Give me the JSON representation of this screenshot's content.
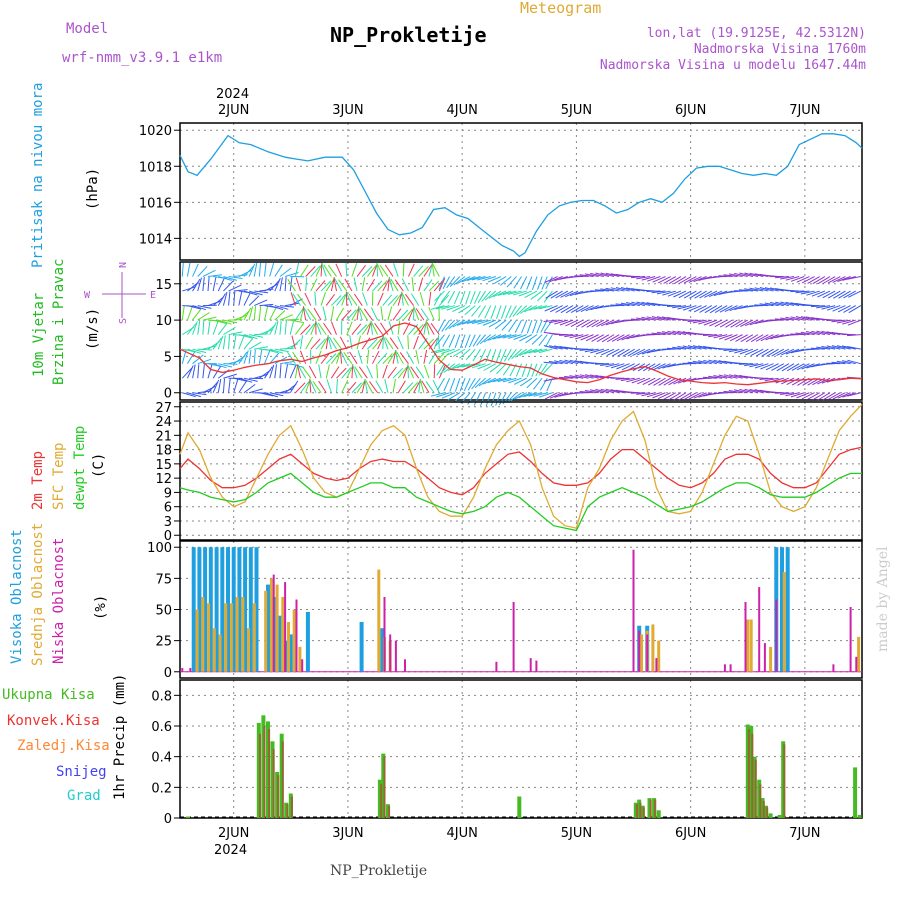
{
  "header": {
    "model_label": "Model",
    "model_name": "wrf-nmm_v3.9.1  e1km",
    "chart_kind": "Meteogram",
    "title": "NP_Prokletije",
    "coords": "lon,lat (19.9125E, 42.5312N)",
    "elevation": "Nadmorska Visina 1760m",
    "model_elevation": "Nadmorska Visina u modelu 1647.44m",
    "footer": "NP_Prokletije",
    "credit": "made by Angel"
  },
  "colors": {
    "pressure": "#1e9fe0",
    "wind_label": "#22bb22",
    "temp_2m": "#ee3333",
    "temp_sfc": "#e0aa33",
    "dewpt": "#22cc22",
    "high_cloud": "#1e9fe0",
    "mid_cloud": "#e0aa33",
    "low_cloud": "#cc22aa",
    "precip_total": "#44bb22",
    "precip_conv": "#ee3333",
    "precip_frz": "#ff8833",
    "snow": "#4444ee",
    "hail": "#22cccc",
    "title_purple": "#aa55cc"
  },
  "chart_data": [
    {
      "type": "line",
      "panel": "pressure",
      "ylabel_name": "Pritisak na nivou mora",
      "ylabel_unit": "(hPa)",
      "yticks": [
        "1014",
        "1016",
        "1018",
        "1020"
      ],
      "ylim": [
        1012.8,
        1020.4
      ],
      "x_top_year": "2024",
      "x_ticks": [
        "2JUN",
        "3JUN",
        "4JUN",
        "5JUN",
        "6JUN",
        "7JUN"
      ],
      "x_bottom_year": "2024",
      "xlim": [
        1.53,
        7.5
      ],
      "x": [
        1.53,
        1.6,
        1.68,
        1.8,
        1.95,
        2.05,
        2.15,
        2.3,
        2.45,
        2.55,
        2.65,
        2.8,
        2.95,
        3.05,
        3.15,
        3.25,
        3.35,
        3.45,
        3.55,
        3.65,
        3.75,
        3.85,
        3.95,
        4.05,
        4.15,
        4.25,
        4.35,
        4.45,
        4.5,
        4.55,
        4.6,
        4.65,
        4.75,
        4.85,
        4.95,
        5.05,
        5.15,
        5.25,
        5.35,
        5.45,
        5.55,
        5.65,
        5.75,
        5.85,
        5.95,
        6.05,
        6.15,
        6.25,
        6.35,
        6.45,
        6.55,
        6.65,
        6.75,
        6.85,
        6.95,
        7.05,
        7.15,
        7.25,
        7.35,
        7.45,
        7.5
      ],
      "y": [
        1018.6,
        1017.7,
        1017.5,
        1018.4,
        1019.7,
        1019.3,
        1019.2,
        1018.8,
        1018.5,
        1018.4,
        1018.3,
        1018.5,
        1018.5,
        1017.8,
        1016.6,
        1015.4,
        1014.5,
        1014.2,
        1014.3,
        1014.6,
        1015.6,
        1015.7,
        1015.3,
        1015.1,
        1014.6,
        1014.1,
        1013.6,
        1013.3,
        1013.0,
        1013.2,
        1013.8,
        1014.4,
        1015.3,
        1015.8,
        1016.0,
        1016.1,
        1016.1,
        1015.8,
        1015.4,
        1015.6,
        1016.0,
        1016.2,
        1016.0,
        1016.5,
        1017.3,
        1017.9,
        1018.0,
        1018.0,
        1017.8,
        1017.6,
        1017.5,
        1017.6,
        1017.5,
        1018.0,
        1019.2,
        1019.5,
        1019.8,
        1019.8,
        1019.7,
        1019.3,
        1019.0
      ]
    },
    {
      "type": "line",
      "panel": "wind",
      "ylabel_name": "10m Vjetar",
      "ylabel_name2": "Brzina i Pravac",
      "ylabel_unit": "(m/s)",
      "compass": {
        "n": "N",
        "s": "S",
        "e": "E",
        "w": "W"
      },
      "yticks": [
        "0",
        "5",
        "10",
        "15"
      ],
      "ylim": [
        -1,
        18
      ],
      "x": [
        1.53,
        1.6,
        1.7,
        1.8,
        1.9,
        2.0,
        2.1,
        2.2,
        2.3,
        2.4,
        2.5,
        2.6,
        2.7,
        2.8,
        2.9,
        3.0,
        3.1,
        3.2,
        3.3,
        3.4,
        3.5,
        3.6,
        3.7,
        3.8,
        3.9,
        4.0,
        4.1,
        4.2,
        4.3,
        4.4,
        4.5,
        4.6,
        4.7,
        4.8,
        4.9,
        5.0,
        5.1,
        5.2,
        5.3,
        5.4,
        5.5,
        5.6,
        5.7,
        5.8,
        5.9,
        6.0,
        6.1,
        6.2,
        6.3,
        6.4,
        6.5,
        6.6,
        6.7,
        6.8,
        6.9,
        7.0,
        7.1,
        7.2,
        7.3,
        7.4,
        7.5
      ],
      "y": [
        6,
        5.5,
        4.8,
        3.2,
        2.8,
        3.1,
        3.5,
        3.8,
        4,
        4.4,
        4.6,
        4.3,
        4.8,
        5.2,
        5.8,
        6.2,
        6.8,
        7.3,
        7.8,
        9.2,
        9.6,
        9.1,
        6.8,
        4.5,
        3.2,
        3.1,
        3.8,
        4.6,
        4.2,
        3.9,
        3.6,
        3.4,
        2.6,
        2.1,
        1.8,
        1.5,
        1.4,
        1.8,
        2.4,
        2.9,
        3.3,
        3.6,
        3,
        2.3,
        1.8,
        1.6,
        1.4,
        1.3,
        1.4,
        1.2,
        1.1,
        1.3,
        1.5,
        1.6,
        1.7,
        1.8,
        1.9,
        1.7,
        1.8,
        2.0,
        1.9
      ]
    },
    {
      "type": "line",
      "panel": "temperature",
      "ylabel_names": [
        "2m Temp",
        "SFC Temp",
        "dewpt Temp"
      ],
      "ylabel_unit": "(C)",
      "yticks": [
        "0",
        "3",
        "6",
        "9",
        "12",
        "15",
        "18",
        "21",
        "24",
        "27"
      ],
      "ylim": [
        -1,
        28
      ],
      "series": [
        {
          "name": "2m Temp",
          "x": [
            1.53,
            1.6,
            1.7,
            1.8,
            1.9,
            2.0,
            2.1,
            2.2,
            2.3,
            2.4,
            2.5,
            2.6,
            2.7,
            2.8,
            2.9,
            3.0,
            3.1,
            3.2,
            3.3,
            3.4,
            3.5,
            3.6,
            3.7,
            3.8,
            3.9,
            4.0,
            4.1,
            4.2,
            4.3,
            4.4,
            4.5,
            4.6,
            4.7,
            4.8,
            4.9,
            5.0,
            5.1,
            5.2,
            5.3,
            5.4,
            5.5,
            5.6,
            5.7,
            5.8,
            5.9,
            6.0,
            6.1,
            6.2,
            6.3,
            6.4,
            6.5,
            6.6,
            6.7,
            6.8,
            6.9,
            7.0,
            7.1,
            7.2,
            7.3,
            7.4,
            7.5
          ],
          "y": [
            14,
            16,
            14,
            11.5,
            10,
            10,
            10.5,
            12,
            14,
            16,
            17,
            15,
            13,
            12,
            11.5,
            12,
            14,
            15.5,
            16,
            15.5,
            15.5,
            14,
            12,
            10,
            9,
            8.5,
            10,
            13,
            15,
            17,
            17.5,
            15.5,
            13,
            11,
            10.5,
            10.5,
            11,
            13,
            16,
            18,
            18,
            16,
            14,
            12,
            10.5,
            10,
            11,
            13,
            16,
            17,
            17,
            16,
            13,
            11,
            10,
            10,
            11,
            14,
            17,
            18,
            18.5
          ]
        },
        {
          "name": "SFC Temp",
          "x": [
            1.53,
            1.6,
            1.7,
            1.8,
            1.9,
            2.0,
            2.1,
            2.2,
            2.3,
            2.4,
            2.5,
            2.6,
            2.7,
            2.8,
            2.9,
            3.0,
            3.1,
            3.2,
            3.3,
            3.4,
            3.5,
            3.6,
            3.7,
            3.8,
            3.9,
            4.0,
            4.1,
            4.2,
            4.3,
            4.4,
            4.5,
            4.6,
            4.7,
            4.8,
            4.9,
            5.0,
            5.1,
            5.2,
            5.3,
            5.4,
            5.5,
            5.6,
            5.7,
            5.8,
            5.9,
            6.0,
            6.1,
            6.2,
            6.3,
            6.4,
            6.5,
            6.6,
            6.7,
            6.8,
            6.9,
            7.0,
            7.1,
            7.2,
            7.3,
            7.4,
            7.5
          ],
          "y": [
            17,
            21.5,
            18,
            12,
            8,
            6,
            7,
            12,
            17,
            21,
            23,
            18,
            12,
            9,
            8,
            9,
            14,
            19,
            22,
            23,
            21,
            14,
            8,
            5,
            4,
            4,
            8,
            14,
            19,
            22,
            24,
            19,
            10,
            4,
            2,
            1.5,
            10,
            14,
            20,
            24,
            26,
            20,
            10,
            5,
            4.5,
            5,
            9,
            15,
            21,
            25,
            24,
            17,
            9,
            6,
            5,
            6,
            10,
            16,
            22,
            25,
            27.5
          ]
        },
        {
          "name": "dewpt Temp",
          "x": [
            1.53,
            1.6,
            1.7,
            1.8,
            1.9,
            2.0,
            2.1,
            2.2,
            2.3,
            2.4,
            2.5,
            2.6,
            2.7,
            2.8,
            2.9,
            3.0,
            3.1,
            3.2,
            3.3,
            3.4,
            3.5,
            3.6,
            3.7,
            3.8,
            3.9,
            4.0,
            4.1,
            4.2,
            4.3,
            4.4,
            4.5,
            4.6,
            4.7,
            4.8,
            4.9,
            5.0,
            5.1,
            5.2,
            5.3,
            5.4,
            5.5,
            5.6,
            5.7,
            5.8,
            5.9,
            6.0,
            6.1,
            6.2,
            6.3,
            6.4,
            6.5,
            6.6,
            6.7,
            6.8,
            6.9,
            7.0,
            7.1,
            7.2,
            7.3,
            7.4,
            7.5
          ],
          "y": [
            10,
            9.5,
            9,
            8,
            7.5,
            7,
            7.5,
            9,
            11,
            12,
            13,
            11,
            9,
            8,
            8,
            9,
            10,
            11,
            11,
            10,
            10,
            8,
            7,
            6,
            5,
            4.5,
            5,
            6,
            8,
            9,
            8,
            6,
            4,
            2,
            1.5,
            1,
            6,
            8,
            9,
            10,
            9,
            8,
            6.5,
            5,
            5.5,
            6,
            7,
            8.5,
            10,
            11,
            11,
            10,
            8.5,
            8,
            8,
            8,
            9,
            10.5,
            12,
            13,
            13
          ]
        }
      ]
    },
    {
      "type": "bar",
      "panel": "clouds",
      "ylabel_names": [
        "Visoka Oblacnost",
        "Srednja Oblacnost",
        "Niska Oblacnost"
      ],
      "ylabel_unit": "(%)",
      "yticks": [
        "0",
        "25",
        "50",
        "75",
        "100"
      ],
      "ylim": [
        -5,
        105
      ],
      "series": [
        {
          "name": "Visoka Oblacnost",
          "x": [
            1.65,
            1.7,
            1.75,
            1.8,
            1.85,
            1.9,
            1.95,
            2.0,
            2.05,
            2.1,
            2.15,
            2.2,
            2.3,
            2.35,
            2.4,
            2.45,
            2.5,
            2.65,
            3.12,
            3.3,
            6.75,
            6.8,
            6.85,
            5.55,
            5.62
          ],
          "y": [
            100,
            100,
            100,
            100,
            100,
            100,
            100,
            100,
            100,
            100,
            100,
            100,
            70,
            60,
            45,
            25,
            30,
            48,
            40,
            35,
            100,
            100,
            100,
            37,
            37
          ]
        },
        {
          "name": "Srednja Oblacnost",
          "x": [
            1.68,
            1.73,
            1.78,
            1.83,
            1.88,
            1.93,
            1.98,
            2.03,
            2.08,
            2.13,
            2.18,
            2.28,
            2.33,
            2.38,
            2.43,
            2.48,
            2.53,
            2.58,
            3.27,
            3.32,
            3.37,
            5.57,
            5.62,
            5.67,
            5.72,
            6.5,
            6.53,
            6.7,
            6.82,
            7.47
          ],
          "y": [
            50,
            60,
            55,
            35,
            30,
            55,
            55,
            60,
            60,
            35,
            55,
            65,
            75,
            70,
            60,
            40,
            50,
            20,
            82,
            28,
            25,
            30,
            33,
            38,
            25,
            42,
            42,
            20,
            80,
            28
          ]
        },
        {
          "name": "Niska Oblacnost",
          "x": [
            1.55,
            1.62,
            2.35,
            2.45,
            2.55,
            2.6,
            3.32,
            3.37,
            3.42,
            3.5,
            4.3,
            4.45,
            4.6,
            4.65,
            5.5,
            5.55,
            5.62,
            5.7,
            6.3,
            6.35,
            6.48,
            6.6,
            6.65,
            6.75,
            7.25,
            7.4,
            7.45
          ],
          "y": [
            3,
            3,
            78,
            72,
            58,
            10,
            60,
            30,
            25,
            10,
            8,
            56,
            11,
            9,
            98,
            33,
            30,
            11,
            6,
            6,
            56,
            68,
            23,
            58,
            6,
            52,
            12
          ]
        }
      ]
    },
    {
      "type": "bar",
      "panel": "precip",
      "ylabel_names": [
        "Ukupna Kisa",
        "Konvek.Kisa",
        "Zaledj.Kisa",
        "Snijeg",
        "Grad"
      ],
      "ylabel_unit": "1hr Precip (mm)",
      "yticks": [
        "0",
        "0.2",
        "0.4",
        "0.6",
        "0.8"
      ],
      "ylim": [
        0,
        0.9
      ],
      "series": [
        {
          "name": "Ukupna Kisa",
          "x": [
            1.6,
            2.22,
            2.26,
            2.3,
            2.34,
            2.38,
            2.42,
            2.46,
            2.5,
            3.28,
            3.31,
            3.35,
            4.5,
            5.52,
            5.55,
            5.58,
            5.64,
            5.68,
            5.72,
            6.5,
            6.53,
            6.56,
            6.6,
            6.63,
            6.66,
            6.7,
            6.78,
            6.81,
            7.44,
            7.48
          ],
          "y": [
            0.01,
            0.62,
            0.67,
            0.63,
            0.5,
            0.3,
            0.55,
            0.1,
            0.16,
            0.25,
            0.42,
            0.09,
            0.14,
            0.1,
            0.12,
            0.08,
            0.13,
            0.13,
            0.05,
            0.61,
            0.6,
            0.4,
            0.25,
            0.13,
            0.08,
            0.03,
            0.02,
            0.5,
            0.33,
            0.02
          ]
        },
        {
          "name": "Konvek.Kisa",
          "x": [
            2.23,
            2.27,
            2.31,
            2.35,
            2.39,
            2.43,
            2.47,
            2.51,
            3.29,
            3.32,
            3.36,
            5.53,
            5.56,
            5.59,
            5.65,
            5.69,
            6.51,
            6.54,
            6.57,
            6.61,
            6.64,
            6.67,
            6.82
          ],
          "y": [
            0.55,
            0.6,
            0.58,
            0.45,
            0.28,
            0.5,
            0.09,
            0.14,
            0.22,
            0.4,
            0.08,
            0.09,
            0.1,
            0.07,
            0.12,
            0.12,
            0.58,
            0.55,
            0.38,
            0.22,
            0.11,
            0.07,
            0.48
          ]
        }
      ]
    }
  ]
}
